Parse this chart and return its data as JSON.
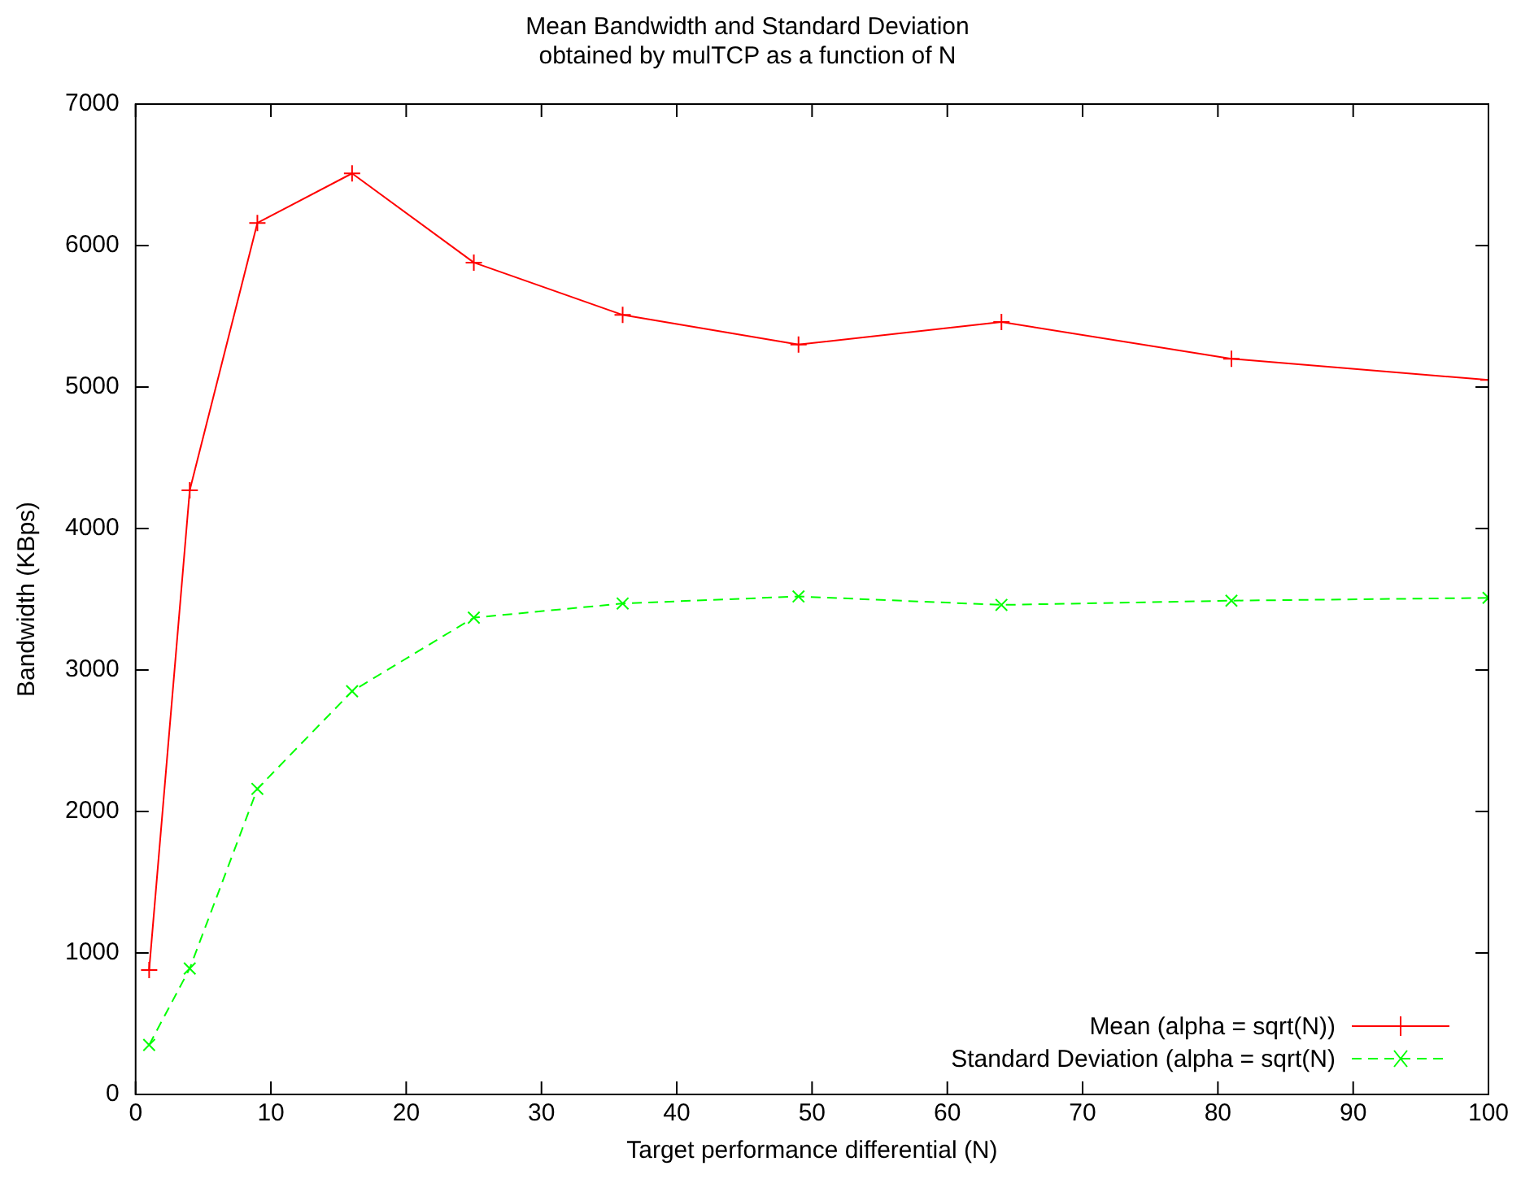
{
  "chart_data": {
    "type": "line",
    "title": [
      "Mean Bandwidth and Standard Deviation",
      "obtained by mulTCP as a function of N"
    ],
    "xlabel": "Target performance differential (N)",
    "ylabel": "Bandwidth (KBps)",
    "x": [
      1,
      4,
      9,
      16,
      25,
      36,
      49,
      64,
      81,
      100
    ],
    "series": [
      {
        "name": "Mean (alpha = sqrt(N))",
        "color": "#ff0000",
        "marker": "cross",
        "line_style": "solid",
        "values": [
          880,
          4270,
          6160,
          6510,
          5880,
          5510,
          5300,
          5460,
          5200,
          5050
        ]
      },
      {
        "name": "Standard Deviation (alpha = sqrt(N)",
        "color": "#00ff00",
        "marker": "x",
        "line_style": "dashed",
        "values": [
          350,
          890,
          2160,
          2850,
          3370,
          3470,
          3520,
          3460,
          3490,
          3510
        ]
      }
    ],
    "xlim": [
      0,
      100
    ],
    "xticks": [
      0,
      10,
      20,
      30,
      40,
      50,
      60,
      70,
      80,
      90,
      100
    ],
    "ylim": [
      0,
      7000
    ],
    "yticks": [
      0,
      1000,
      2000,
      3000,
      4000,
      5000,
      6000,
      7000
    ],
    "grid": false,
    "legend": "bottom right"
  }
}
